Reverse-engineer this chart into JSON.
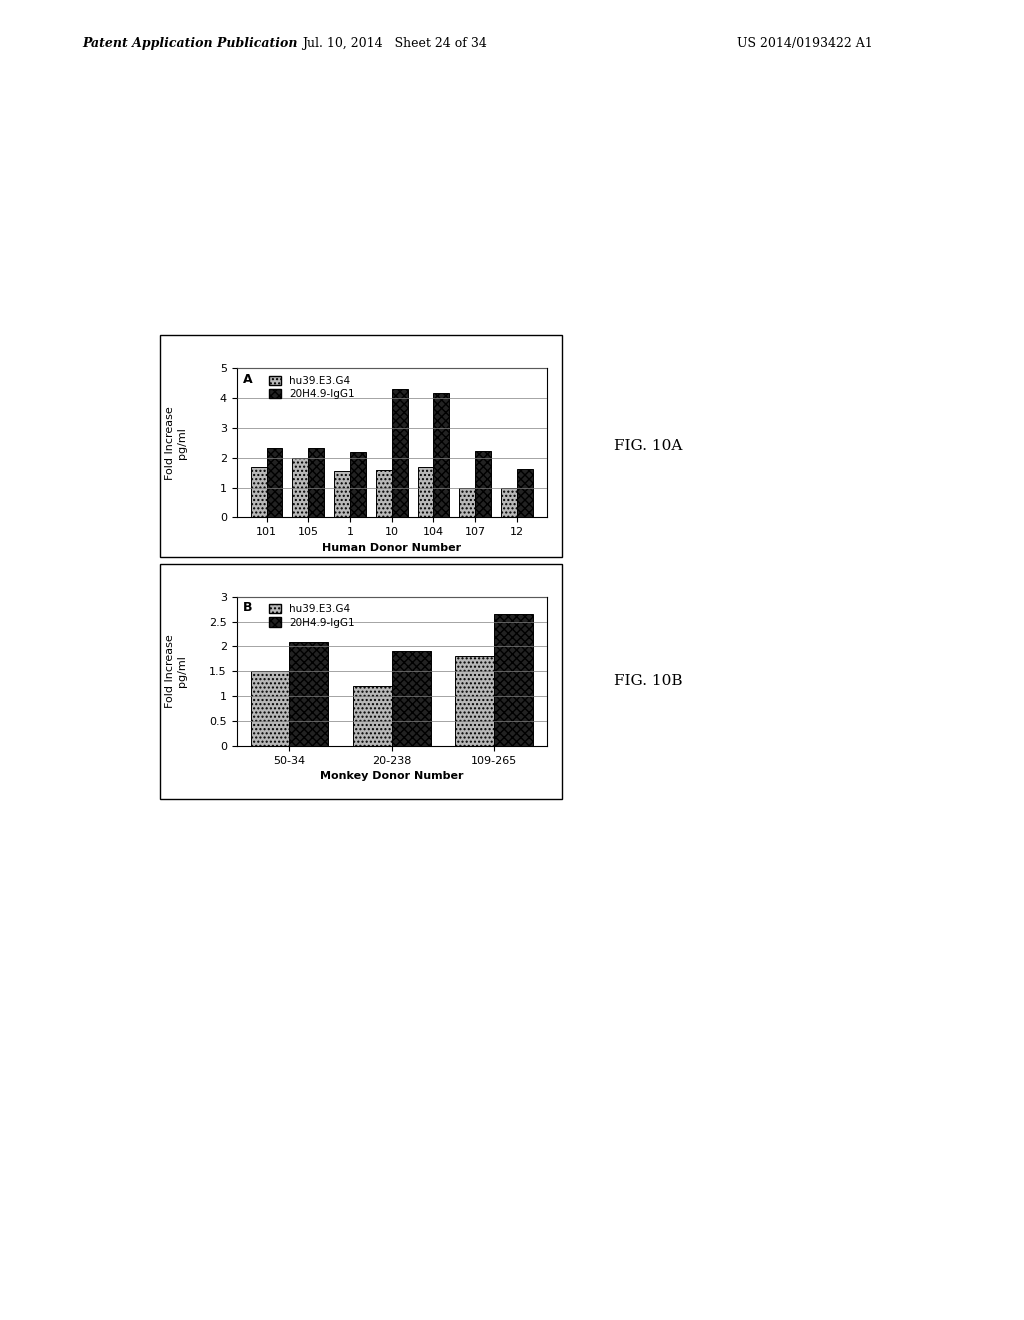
{
  "figA": {
    "categories": [
      "101",
      "105",
      "1",
      "10",
      "104",
      "107",
      "12"
    ],
    "hu39": [
      1.7,
      2.0,
      1.55,
      1.6,
      1.7,
      1.0,
      1.0
    ],
    "igg1": [
      2.32,
      2.33,
      2.18,
      4.3,
      4.18,
      2.22,
      1.62
    ],
    "ylim": [
      0,
      5
    ],
    "yticks": [
      0,
      1,
      2,
      3,
      4,
      5
    ],
    "xlabel": "Human Donor Number",
    "ylabel": "Fold Increase\npg/ml",
    "legend_label_hu39": "hu39.E3.G4",
    "legend_label_igg1": "20H4.9-IgG1",
    "panel_label": "A"
  },
  "figB": {
    "categories": [
      "50-34",
      "20-238",
      "109-265"
    ],
    "hu39": [
      1.5,
      1.2,
      1.8
    ],
    "igg1": [
      2.08,
      1.9,
      2.65
    ],
    "ylim": [
      0,
      3
    ],
    "yticks": [
      0,
      0.5,
      1,
      1.5,
      2,
      2.5,
      3
    ],
    "xlabel": "Monkey Donor Number",
    "ylabel": "Fold Increase\npg/ml",
    "legend_label_hu39": "hu39.E3.G4",
    "legend_label_igg1": "20H4.9-IgG1",
    "panel_label": "B"
  },
  "color_hu39": "#b8b8b8",
  "color_igg1": "#222222",
  "hatch_hu39": "....",
  "hatch_igg1": "xxxx",
  "fig10a_label": "FIG. 10A",
  "fig10b_label": "FIG. 10B",
  "header_left": "Patent Application Publication",
  "header_mid": "Jul. 10, 2014   Sheet 24 of 34",
  "header_right": "US 2014/0193422 A1"
}
